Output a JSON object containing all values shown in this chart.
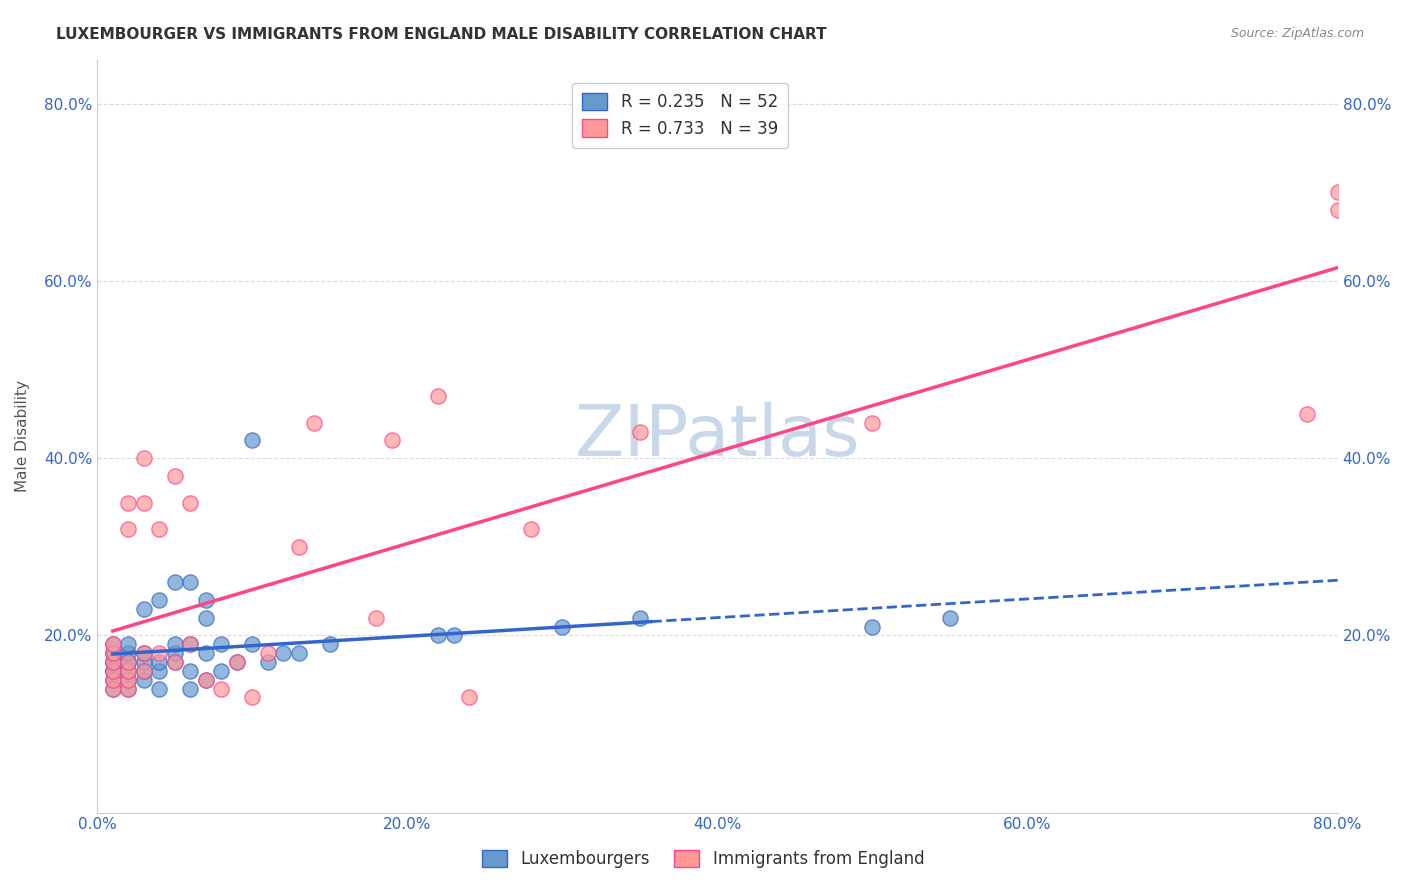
{
  "title": "LUXEMBOURGER VS IMMIGRANTS FROM ENGLAND MALE DISABILITY CORRELATION CHART",
  "source": "Source: ZipAtlas.com",
  "xlabel": "",
  "ylabel": "Male Disability",
  "xlim": [
    0.0,
    0.8
  ],
  "ylim": [
    0.0,
    0.85
  ],
  "xtick_labels": [
    "0.0%",
    "20.0%",
    "40.0%",
    "60.0%",
    "80.0%"
  ],
  "xtick_vals": [
    0.0,
    0.2,
    0.4,
    0.6,
    0.8
  ],
  "ytick_labels": [
    "20.0%",
    "40.0%",
    "60.0%",
    "80.0%"
  ],
  "ytick_vals": [
    0.2,
    0.4,
    0.6,
    0.8
  ],
  "blue_color": "#6699cc",
  "pink_color": "#ff9999",
  "blue_line_color": "#3366cc",
  "pink_line_color": "#ff4488",
  "R_blue": 0.235,
  "N_blue": 52,
  "R_pink": 0.733,
  "N_pink": 39,
  "lux_x": [
    0.01,
    0.01,
    0.01,
    0.01,
    0.01,
    0.01,
    0.01,
    0.01,
    0.01,
    0.02,
    0.02,
    0.02,
    0.02,
    0.02,
    0.02,
    0.02,
    0.03,
    0.03,
    0.03,
    0.03,
    0.03,
    0.04,
    0.04,
    0.04,
    0.04,
    0.05,
    0.05,
    0.05,
    0.05,
    0.06,
    0.06,
    0.06,
    0.06,
    0.07,
    0.07,
    0.07,
    0.07,
    0.08,
    0.08,
    0.09,
    0.1,
    0.1,
    0.11,
    0.12,
    0.13,
    0.15,
    0.22,
    0.23,
    0.3,
    0.35,
    0.5,
    0.55
  ],
  "lux_y": [
    0.14,
    0.15,
    0.16,
    0.16,
    0.17,
    0.17,
    0.18,
    0.18,
    0.19,
    0.14,
    0.15,
    0.16,
    0.17,
    0.17,
    0.18,
    0.19,
    0.15,
    0.16,
    0.17,
    0.18,
    0.23,
    0.14,
    0.16,
    0.17,
    0.24,
    0.17,
    0.18,
    0.19,
    0.26,
    0.14,
    0.16,
    0.19,
    0.26,
    0.15,
    0.18,
    0.22,
    0.24,
    0.16,
    0.19,
    0.17,
    0.19,
    0.42,
    0.17,
    0.18,
    0.18,
    0.19,
    0.2,
    0.2,
    0.21,
    0.22,
    0.21,
    0.22
  ],
  "eng_x": [
    0.01,
    0.01,
    0.01,
    0.01,
    0.01,
    0.01,
    0.02,
    0.02,
    0.02,
    0.02,
    0.02,
    0.02,
    0.03,
    0.03,
    0.03,
    0.03,
    0.04,
    0.04,
    0.05,
    0.05,
    0.06,
    0.06,
    0.07,
    0.08,
    0.09,
    0.1,
    0.11,
    0.13,
    0.14,
    0.18,
    0.19,
    0.22,
    0.24,
    0.28,
    0.35,
    0.5,
    0.78,
    0.8,
    0.8
  ],
  "eng_y": [
    0.14,
    0.15,
    0.16,
    0.17,
    0.18,
    0.19,
    0.14,
    0.15,
    0.16,
    0.17,
    0.32,
    0.35,
    0.16,
    0.18,
    0.35,
    0.4,
    0.18,
    0.32,
    0.17,
    0.38,
    0.19,
    0.35,
    0.15,
    0.14,
    0.17,
    0.13,
    0.18,
    0.3,
    0.44,
    0.22,
    0.42,
    0.47,
    0.13,
    0.32,
    0.43,
    0.44,
    0.45,
    0.68,
    0.7
  ],
  "watermark": "ZIPatlas",
  "watermark_color": "#c8d8e8",
  "legend_blue_label": "R = 0.235   N = 52",
  "legend_pink_label": "R = 0.733   N = 39",
  "bottom_legend_blue": "Luxembourgers",
  "bottom_legend_pink": "Immigrants from England"
}
